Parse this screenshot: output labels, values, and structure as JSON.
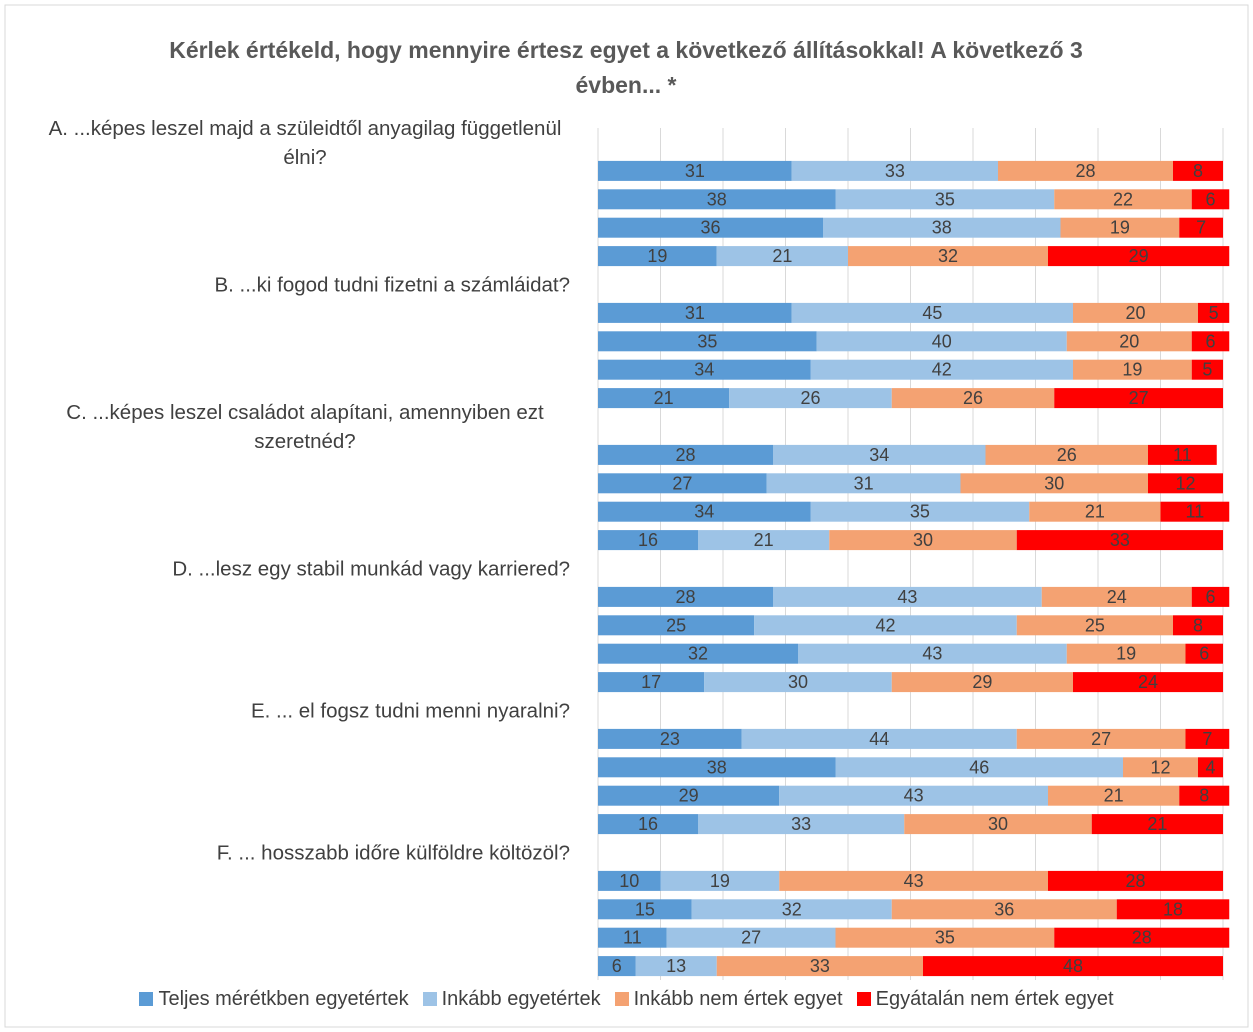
{
  "chart_data": {
    "type": "stacked_bar_horizontal",
    "title": "Kérlek értékeld, hogy mennyire értesz egyet a következő állításokkal! A következő 3 évben... *",
    "categories": [
      "A. ...képes leszel majd a szüleidtől anyagilag függetlenül élni?",
      null,
      null,
      null,
      null,
      "B. ...ki fogod tudni fizetni a számláidat?",
      null,
      null,
      null,
      null,
      "C.  ...képes leszel családot alapítani, amennyiben ezt szeretnéd?",
      null,
      null,
      null,
      null,
      "D. ...lesz egy stabil munkád vagy karriered?",
      null,
      null,
      null,
      null,
      "E. ... el fogsz tudni menni nyaralni?",
      null,
      null,
      null,
      null,
      "F. ... hosszabb időre külföldre költözöl?",
      null,
      null,
      null,
      null
    ],
    "series": [
      {
        "name": "Teljes mérétkben egyetértek",
        "color": "#5b9bd5",
        "values": [
          null,
          31,
          38,
          36,
          19,
          null,
          31,
          35,
          34,
          21,
          null,
          28,
          27,
          34,
          16,
          null,
          28,
          25,
          32,
          17,
          null,
          23,
          38,
          29,
          16,
          null,
          10,
          15,
          11,
          6
        ]
      },
      {
        "name": "Inkább egyetértek",
        "color": "#9dc3e6",
        "values": [
          null,
          33,
          35,
          38,
          21,
          null,
          45,
          40,
          42,
          26,
          null,
          34,
          31,
          35,
          21,
          null,
          43,
          42,
          43,
          30,
          null,
          44,
          46,
          43,
          33,
          null,
          19,
          32,
          27,
          13
        ]
      },
      {
        "name": "Inkább nem értek egyet",
        "color": "#f4a272",
        "values": [
          null,
          28,
          22,
          19,
          32,
          null,
          20,
          20,
          19,
          26,
          null,
          26,
          30,
          21,
          30,
          null,
          24,
          25,
          19,
          29,
          null,
          27,
          12,
          21,
          30,
          null,
          43,
          36,
          35,
          33
        ]
      },
      {
        "name": "Egyátalán nem értek egyet",
        "color": "#ff0000",
        "values": [
          null,
          8,
          6,
          7,
          29,
          null,
          5,
          6,
          5,
          27,
          null,
          11,
          12,
          11,
          33,
          null,
          6,
          8,
          6,
          24,
          null,
          7,
          4,
          8,
          21,
          null,
          28,
          18,
          28,
          48
        ]
      }
    ],
    "xlim": [
      0,
      100
    ],
    "xticks": [
      0,
      10,
      20,
      30,
      40,
      50,
      60,
      70,
      80,
      90,
      100
    ],
    "grid": true,
    "legend": "bottom"
  }
}
